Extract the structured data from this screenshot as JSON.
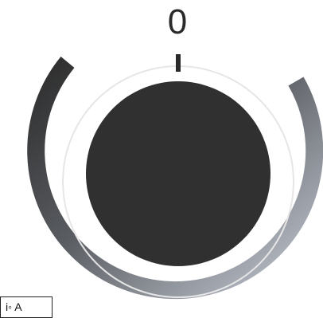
{
  "dial": {
    "value_label": "0",
    "value": 0,
    "colors": {
      "knob": "#303030",
      "track_dark": "#2c2c2c",
      "track_light": "#c5cad4",
      "inner_ring": "#e6e6e6",
      "pointer": "#2a2a2a"
    }
  },
  "corner_box": {
    "label": "i◦ A"
  }
}
